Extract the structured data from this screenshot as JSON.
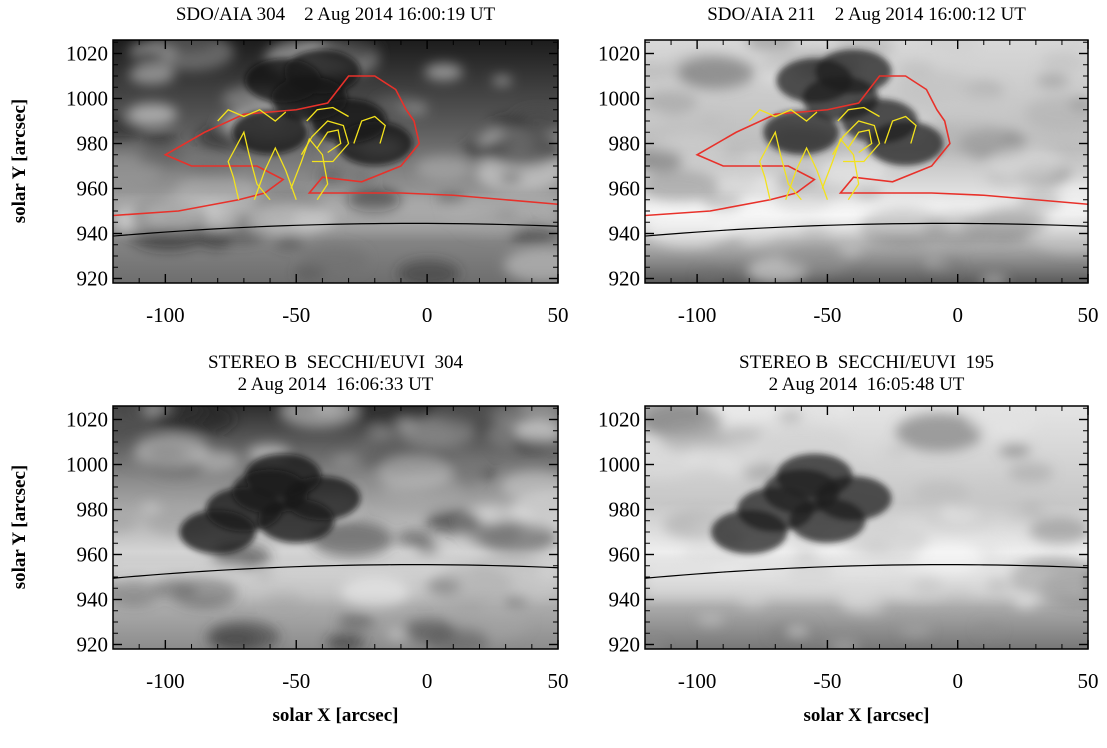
{
  "panels": [
    {
      "id": "aia304",
      "title_lines": [
        "SDO/AIA 304    2 Aug 2014 16:00:19 UT"
      ],
      "ylabel": "solar Y  [arcsec]",
      "xlabel": "",
      "style": "aia304",
      "contours": true
    },
    {
      "id": "aia211",
      "title_lines": [
        "SDO/AIA 211    2 Aug 2014 16:00:12 UT"
      ],
      "ylabel": "",
      "xlabel": "",
      "style": "aia211",
      "contours": true
    },
    {
      "id": "euvi304",
      "title_lines": [
        "STEREO B  SECCHI/EUVI  304",
        "2 Aug 2014  16:06:33 UT"
      ],
      "ylabel": "solar Y  [arcsec]",
      "xlabel": "solar X  [arcsec]",
      "style": "euvi304",
      "contours": false
    },
    {
      "id": "euvi195",
      "title_lines": [
        "STEREO B  SECCHI/EUVI  195",
        "2 Aug 2014  16:05:48 UT"
      ],
      "ylabel": "",
      "xlabel": "solar X  [arcsec]",
      "style": "euvi195",
      "contours": false
    }
  ],
  "axes": {
    "x_range": [
      -120,
      50
    ],
    "y_range": [
      918,
      1026
    ],
    "x_ticks": [
      -100,
      -50,
      0,
      50
    ],
    "x_tick_labels": [
      "-100",
      "-50",
      "0",
      "50"
    ],
    "y_ticks": [
      920,
      940,
      960,
      980,
      1000,
      1020
    ],
    "y_tick_labels": [
      "920",
      "940",
      "960",
      "980",
      "1000",
      "1020"
    ]
  },
  "overlay": {
    "limb_color": "#000000",
    "red_contour_color": "#e8312a",
    "yellow_contour_color": "#f3e21c"
  }
}
